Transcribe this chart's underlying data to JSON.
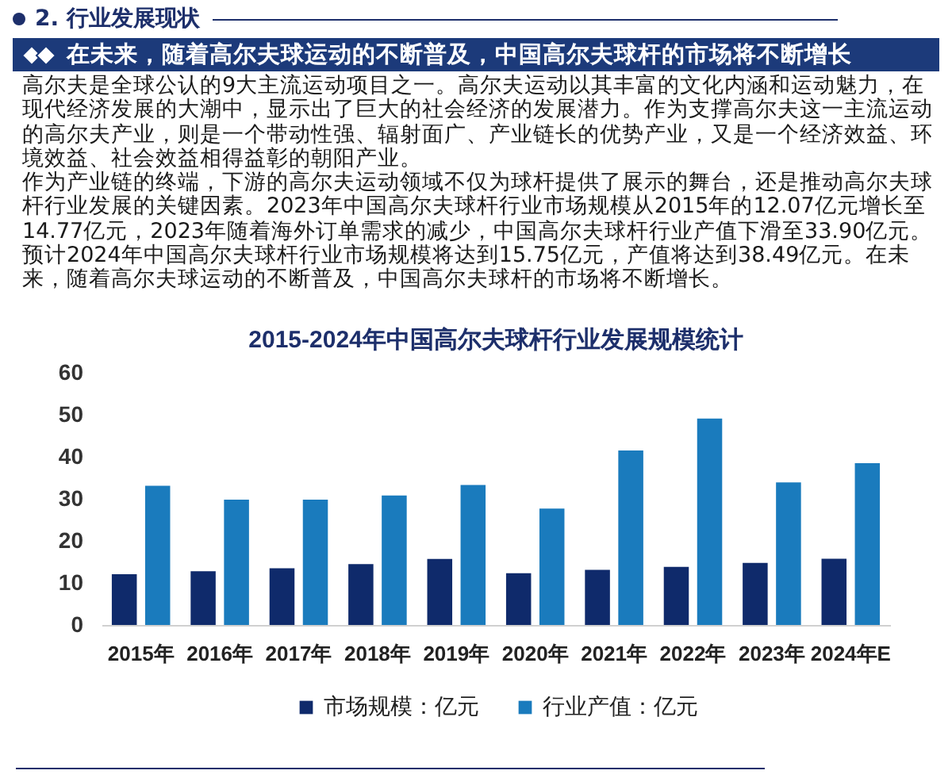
{
  "chart_data": {
    "type": "bar",
    "title": "2015-2024年中国高尔夫球杆行业发展规模统计",
    "annotations": [
      "2. 行业发展现状",
      "在未来，随着高尔夫球运动的不断普及，中国高尔夫球杆的市场将不断增长",
      "高尔夫是全球公认的9大主流运动项目之一。高尔夫运动以其丰富的文化内涵和运动魅力，在现代经济发展的大潮中，显示出了巨大的社会经济的发展潜力。作为支撑高尔夫这一主流运动的高尔夫产业，则是一个带动性强、辐射面广、产业链长的优势产业，又是一个经济效益、环境效益、社会效益相得益彰的朝阳产业。",
      "作为产业链的终端，下游的高尔夫运动领域不仅为球杆提供了展示的舞台，还是推动高尔夫球杆行业发展的关键因素。2023年中国高尔夫球杆行业市场规模从2015年的12.07亿元增长至14.77亿元，2023年随着海外订单需求的减少，中国高尔夫球杆行业产值下滑至33.90亿元。预计2024年中国高尔夫球杆行业市场规模将达到15.75亿元，产值将达到38.49亿元。在未来，随着高尔夫球运动的不断普及，中国高尔夫球杆的市场将不断增长。"
    ],
    "categories": [
      "2015年",
      "2016年",
      "2017年",
      "2018年",
      "2019年",
      "2020年",
      "2021年",
      "2022年",
      "2023年",
      "2024年E"
    ],
    "series": [
      {
        "name": "市场规模：亿元",
        "color": "#0f2a6b",
        "values": [
          12.07,
          12.8,
          13.5,
          14.5,
          15.7,
          12.3,
          13.1,
          13.8,
          14.77,
          15.75
        ]
      },
      {
        "name": "行业产值：亿元",
        "color": "#1a7bbd",
        "values": [
          33.1,
          29.8,
          29.8,
          30.8,
          33.3,
          27.7,
          41.5,
          49.1,
          33.9,
          38.49
        ]
      }
    ],
    "ylim": [
      0,
      60
    ],
    "yticks": [
      0,
      10,
      20,
      30,
      40,
      50,
      60
    ],
    "legend": "bottom"
  }
}
